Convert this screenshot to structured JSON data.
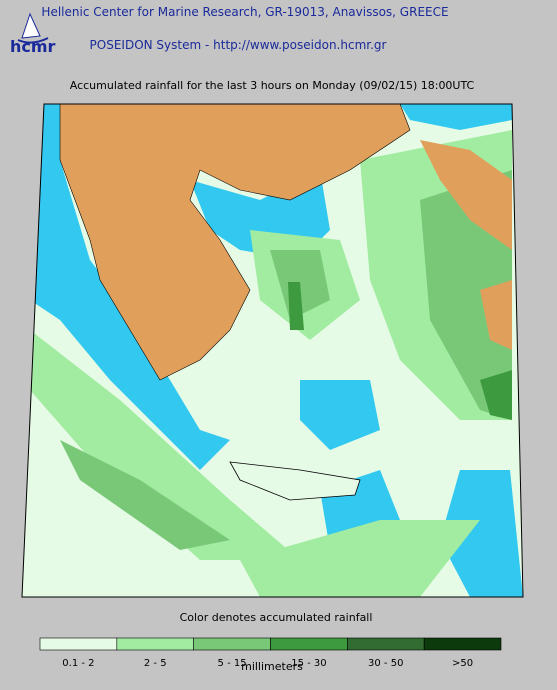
{
  "header": {
    "logo": "hcmr",
    "line1": "Hellenic Center for Marine Research, GR-19013, Anavissos, GREECE",
    "line2": "POSEIDON System - http://www.poseidon.hcmr.gr"
  },
  "title": "Accumulated rainfall for the last 3 hours on Monday (09/02/15) 18:00UTC",
  "legend": {
    "title": "Color denotes accumulated rainfall",
    "unit": "millimeters",
    "classes": [
      {
        "label": "0.1 - 2",
        "color": "#e6fbe6"
      },
      {
        "label": "2 - 5",
        "color": "#a2eca2"
      },
      {
        "label": "5 - 15",
        "color": "#78c878"
      },
      {
        "label": "15 - 30",
        "color": "#3e9a3e"
      },
      {
        "label": "30 - 50",
        "color": "#326c32"
      },
      {
        "label": ">50",
        "color": "#0c3a0c"
      }
    ]
  }
}
